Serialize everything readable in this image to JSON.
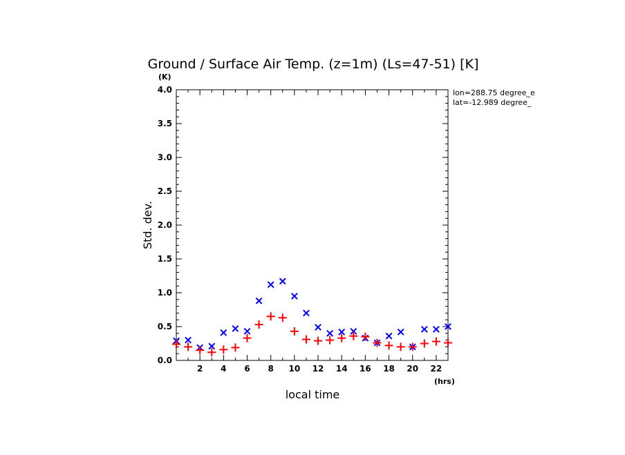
{
  "chart_data": {
    "type": "scatter",
    "title": "Ground / Surface Air Temp. (z=1m) (Ls=47-51) [K]",
    "xlabel": "local time",
    "ylabel": "Std. dev.",
    "x_unit": "(hrs)",
    "y_unit": "(K)",
    "xlim": [
      0,
      23
    ],
    "ylim": [
      0,
      4.0
    ],
    "x_ticks": [
      2,
      4,
      6,
      8,
      10,
      12,
      14,
      16,
      18,
      20,
      22
    ],
    "y_ticks": [
      "0.0",
      "0.5",
      "1.0",
      "1.5",
      "2.0",
      "2.5",
      "3.0",
      "3.5",
      "4.0"
    ],
    "grid": false,
    "annotations": [
      "lon=288.75 degree_e",
      "lat=-12.989 degree_"
    ],
    "series": [
      {
        "marker": "x",
        "color": "#0000ff",
        "x": [
          0,
          1,
          2,
          3,
          4,
          5,
          6,
          7,
          8,
          9,
          10,
          11,
          12,
          13,
          14,
          15,
          16,
          17,
          18,
          19,
          20,
          21,
          22,
          23
        ],
        "y": [
          0.29,
          0.3,
          0.19,
          0.21,
          0.41,
          0.47,
          0.43,
          0.88,
          1.12,
          1.17,
          0.95,
          0.7,
          0.49,
          0.4,
          0.42,
          0.43,
          0.33,
          0.26,
          0.36,
          0.42,
          0.2,
          0.46,
          0.46,
          0.5
        ]
      },
      {
        "marker": "+",
        "color": "#ff0000",
        "x": [
          0,
          1,
          2,
          3,
          4,
          5,
          6,
          7,
          8,
          9,
          10,
          11,
          12,
          13,
          14,
          15,
          16,
          17,
          18,
          19,
          20,
          21,
          22,
          23
        ],
        "y": [
          0.24,
          0.2,
          0.15,
          0.12,
          0.16,
          0.19,
          0.33,
          0.53,
          0.65,
          0.63,
          0.43,
          0.31,
          0.29,
          0.3,
          0.33,
          0.36,
          0.35,
          0.26,
          0.22,
          0.2,
          0.2,
          0.25,
          0.28,
          0.26
        ]
      }
    ]
  }
}
